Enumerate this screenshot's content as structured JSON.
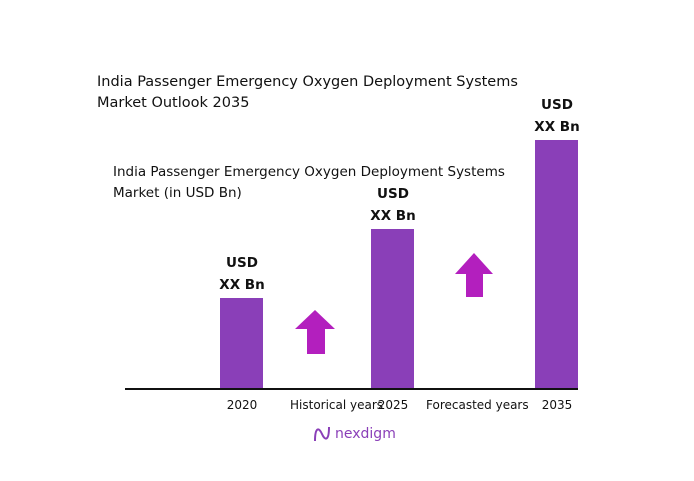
{
  "chart_data": {
    "type": "bar",
    "title": "India Passenger Emergency Oxygen Deployment Systems Market Outlook 2035",
    "subtitle": "India Passenger Emergency Oxygen Deployment Systems Market (in USD Bn)",
    "categories": [
      "2020",
      "2025",
      "2035"
    ],
    "values": [
      1.0,
      1.76,
      2.74
    ],
    "value_note": "relative heights only; actual values not shown",
    "data_labels": [
      [
        "USD",
        "XX Bn"
      ],
      [
        "USD",
        "XX Bn"
      ],
      [
        "USD",
        "XX Bn"
      ]
    ],
    "period_labels": [
      "Historical years",
      "Forecasted years"
    ],
    "xlabel": "",
    "ylabel": "",
    "ylim": [
      0,
      2.74
    ],
    "grid": false,
    "colors": {
      "bar": "#8a3fb8",
      "arrow": "#b31fbe"
    }
  },
  "brand": {
    "name": "nexdigm"
  }
}
